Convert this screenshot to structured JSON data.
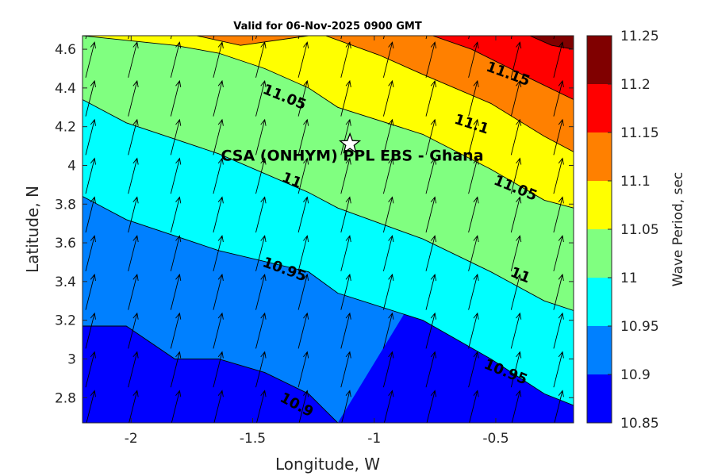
{
  "chart_data": {
    "type": "contourf",
    "title": "Valid for 06-Nov-2025 0900 GMT",
    "xlabel": "Longitude, W",
    "ylabel": "Latitude, N",
    "xlim": [
      -2.2,
      -0.18
    ],
    "ylim": [
      2.67,
      4.67
    ],
    "x_ticks": [
      -2,
      -1.5,
      -1,
      -0.5
    ],
    "x_tick_labels": [
      "-2",
      "-1.5",
      "-1",
      "-0.5"
    ],
    "y_ticks": [
      2.8,
      3.0,
      3.2,
      3.4,
      3.6,
      3.8,
      4.0,
      4.2,
      4.4,
      4.6
    ],
    "y_tick_labels": [
      "2.8",
      "3",
      "3.2",
      "3.4",
      "3.6",
      "3.8",
      "4",
      "4.2",
      "4.4",
      "4.6"
    ],
    "levels": [
      10.85,
      10.9,
      10.95,
      11.0,
      11.05,
      11.1,
      11.15,
      11.2,
      11.25
    ],
    "level_colors": [
      "#0000ff",
      "#0080ff",
      "#00ffff",
      "#80ff80",
      "#ffff00",
      "#ff8000",
      "#ff0000",
      "#800000"
    ],
    "colorbar": {
      "label": "Wave Period, sec",
      "tick_labels": [
        "10.85",
        "10.9",
        "10.95",
        "11",
        "11.05",
        "11.1",
        "11.15",
        "11.2",
        "11.25"
      ]
    },
    "contours": [
      {
        "level": 10.9,
        "points": [
          [
            -2.2,
            3.17
          ],
          [
            -2.02,
            3.17
          ],
          [
            -1.82,
            3.0
          ],
          [
            -1.64,
            3.0
          ],
          [
            -1.45,
            2.93
          ],
          [
            -1.27,
            2.82
          ],
          [
            -1.15,
            2.67
          ]
        ]
      },
      {
        "level": 10.95,
        "points": [
          [
            -2.2,
            3.84
          ],
          [
            -2.02,
            3.72
          ],
          [
            -1.64,
            3.56
          ],
          [
            -1.27,
            3.45
          ],
          [
            -1.15,
            3.34
          ],
          [
            -0.8,
            3.2
          ],
          [
            -0.52,
            3.0
          ],
          [
            -0.3,
            2.82
          ],
          [
            -0.18,
            2.76
          ]
        ]
      },
      {
        "level": 11.0,
        "points": [
          [
            -2.2,
            4.34
          ],
          [
            -2.02,
            4.22
          ],
          [
            -1.64,
            4.06
          ],
          [
            -1.27,
            3.86
          ],
          [
            -1.15,
            3.78
          ],
          [
            -0.8,
            3.62
          ],
          [
            -0.52,
            3.45
          ],
          [
            -0.3,
            3.3
          ],
          [
            -0.18,
            3.25
          ]
        ]
      },
      {
        "level": 11.05,
        "points": [
          [
            -2.2,
            4.67
          ],
          [
            -1.82,
            4.62
          ],
          [
            -1.64,
            4.58
          ],
          [
            -1.45,
            4.5
          ],
          [
            -1.27,
            4.4
          ],
          [
            -1.15,
            4.3
          ],
          [
            -0.8,
            4.16
          ],
          [
            -0.52,
            3.98
          ],
          [
            -0.3,
            3.82
          ],
          [
            -0.18,
            3.78
          ]
        ]
      },
      {
        "level": 11.1,
        "points": [
          [
            -1.73,
            4.67
          ],
          [
            -1.55,
            4.62
          ],
          [
            -1.27,
            4.67
          ]
        ]
      },
      {
        "level": 11.1,
        "points": [
          [
            -1.2,
            4.67
          ],
          [
            -0.98,
            4.57
          ],
          [
            -0.8,
            4.47
          ],
          [
            -0.52,
            4.32
          ],
          [
            -0.3,
            4.15
          ],
          [
            -0.18,
            4.07
          ]
        ]
      },
      {
        "level": 11.15,
        "points": [
          [
            -0.76,
            4.67
          ],
          [
            -0.6,
            4.6
          ],
          [
            -0.36,
            4.45
          ],
          [
            -0.18,
            4.34
          ]
        ]
      },
      {
        "level": 11.2,
        "points": [
          [
            -0.36,
            4.67
          ],
          [
            -0.27,
            4.62
          ],
          [
            -0.18,
            4.6
          ]
        ]
      }
    ],
    "contour_labels": [
      {
        "text": "11.15",
        "x": -0.45,
        "y": 4.47,
        "angle": 20
      },
      {
        "text": "11.05",
        "x": -1.37,
        "y": 4.35,
        "angle": 22
      },
      {
        "text": "11.1",
        "x": -0.6,
        "y": 4.21,
        "angle": 18
      },
      {
        "text": "11",
        "x": -1.34,
        "y": 3.92,
        "angle": 22
      },
      {
        "text": "11.05",
        "x": -0.42,
        "y": 3.88,
        "angle": 22
      },
      {
        "text": "10.95",
        "x": -1.37,
        "y": 3.46,
        "angle": 20
      },
      {
        "text": "11",
        "x": -0.4,
        "y": 3.43,
        "angle": 22
      },
      {
        "text": "10.95",
        "x": -0.46,
        "y": 2.93,
        "angle": 22
      },
      {
        "text": "10.9",
        "x": -1.32,
        "y": 2.76,
        "angle": 28
      }
    ],
    "vector_field": {
      "x_start": -2.2,
      "x_step": 0.175,
      "columns": 12,
      "y_start": 2.67,
      "y_step": 0.2,
      "rows": 11,
      "u": 0.25,
      "v": 1.0,
      "description": "wave direction arrows pointing NNE"
    },
    "site": {
      "label": "CSA (ONHYM) PPL EBS  - Ghana",
      "lon": -1.1,
      "lat": 4.11
    }
  }
}
